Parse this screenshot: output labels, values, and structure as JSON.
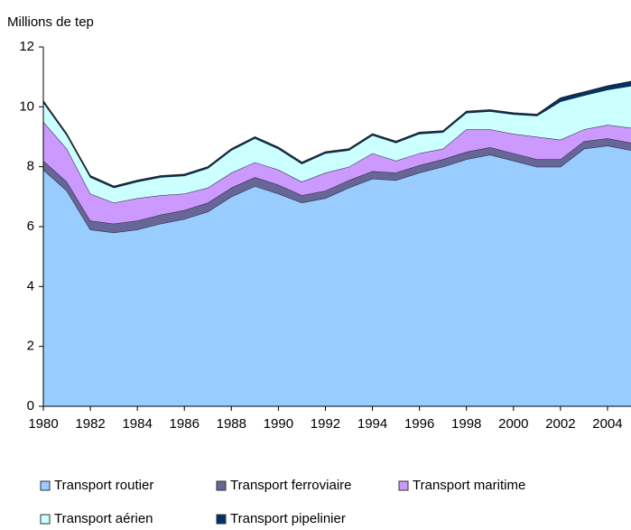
{
  "chart_data": {
    "type": "stacked-area",
    "y_axis_label": "Millions de tep",
    "x": [
      1980,
      1981,
      1982,
      1983,
      1984,
      1985,
      1986,
      1987,
      1988,
      1989,
      1990,
      1991,
      1992,
      1993,
      1994,
      1995,
      1996,
      1997,
      1998,
      1999,
      2000,
      2001,
      2002,
      2003,
      2004,
      2005
    ],
    "xlim": [
      1980,
      2005
    ],
    "xticks": [
      1980,
      1982,
      1984,
      1986,
      1988,
      1990,
      1992,
      1994,
      1996,
      1998,
      2000,
      2002,
      2004
    ],
    "ylim": [
      0,
      12
    ],
    "yticks": [
      0,
      2,
      4,
      6,
      8,
      10,
      12
    ],
    "series": [
      {
        "name": "Transport routier",
        "color": "#99ccff",
        "values": [
          7.9,
          7.2,
          5.9,
          5.8,
          5.9,
          6.1,
          6.25,
          6.5,
          7.0,
          7.35,
          7.1,
          6.8,
          6.95,
          7.3,
          7.6,
          7.55,
          7.8,
          8.0,
          8.25,
          8.4,
          8.2,
          8.0,
          8.0,
          8.6,
          8.7,
          8.55
        ]
      },
      {
        "name": "Transport ferroviaire",
        "color": "#666699",
        "values": [
          0.3,
          0.3,
          0.3,
          0.3,
          0.3,
          0.3,
          0.3,
          0.3,
          0.3,
          0.3,
          0.3,
          0.25,
          0.25,
          0.25,
          0.25,
          0.25,
          0.25,
          0.25,
          0.25,
          0.25,
          0.25,
          0.25,
          0.25,
          0.25,
          0.25,
          0.25
        ]
      },
      {
        "name": "Transport maritime",
        "color": "#cc99ff",
        "values": [
          1.3,
          1.1,
          0.9,
          0.7,
          0.75,
          0.65,
          0.55,
          0.5,
          0.5,
          0.5,
          0.5,
          0.45,
          0.6,
          0.45,
          0.6,
          0.4,
          0.4,
          0.35,
          0.75,
          0.6,
          0.65,
          0.75,
          0.65,
          0.4,
          0.45,
          0.5
        ]
      },
      {
        "name": "Transport aérien",
        "color": "#ccffff",
        "values": [
          0.65,
          0.45,
          0.55,
          0.5,
          0.55,
          0.6,
          0.6,
          0.65,
          0.75,
          0.8,
          0.7,
          0.6,
          0.65,
          0.55,
          0.6,
          0.6,
          0.65,
          0.55,
          0.55,
          0.6,
          0.65,
          0.7,
          1.28,
          1.13,
          1.17,
          1.4
        ]
      },
      {
        "name": "Transport pipelinier",
        "color": "#003366",
        "values": [
          0.05,
          0.05,
          0.05,
          0.05,
          0.05,
          0.05,
          0.05,
          0.05,
          0.05,
          0.05,
          0.05,
          0.05,
          0.05,
          0.05,
          0.05,
          0.05,
          0.05,
          0.05,
          0.05,
          0.05,
          0.05,
          0.05,
          0.12,
          0.12,
          0.13,
          0.15
        ]
      }
    ]
  }
}
